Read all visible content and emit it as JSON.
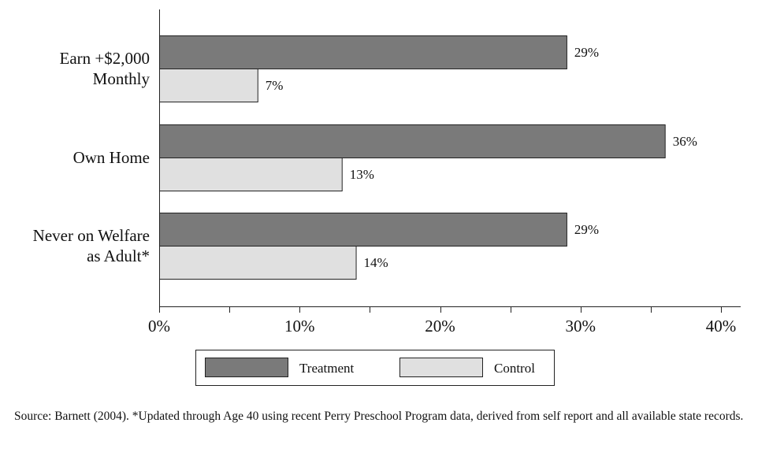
{
  "chart_data": {
    "type": "bar",
    "orientation": "horizontal",
    "categories": [
      [
        "Earn +$2,000",
        "Monthly"
      ],
      [
        "Own Home"
      ],
      [
        "Never on Welfare",
        "as Adult*"
      ]
    ],
    "series": [
      {
        "name": "Treatment",
        "color": "#7a7a7a",
        "values": [
          29,
          36,
          29
        ],
        "labels": [
          "29%",
          "36%",
          "29%"
        ]
      },
      {
        "name": "Control",
        "color": "#e0e0e0",
        "values": [
          7,
          13,
          14
        ],
        "labels": [
          "7%",
          "13%",
          "14%"
        ]
      }
    ],
    "xlim": [
      0,
      40
    ],
    "xticks": [
      0,
      10,
      20,
      30,
      40
    ],
    "xtick_labels": [
      "0%",
      "10%",
      "20%",
      "30%",
      "40%"
    ],
    "legend_position": "bottom",
    "grid": false
  },
  "source_note": "Source: Barnett (2004).  *Updated through Age 40 using recent Perry Preschool Program data, derived from self  report and all available state records."
}
